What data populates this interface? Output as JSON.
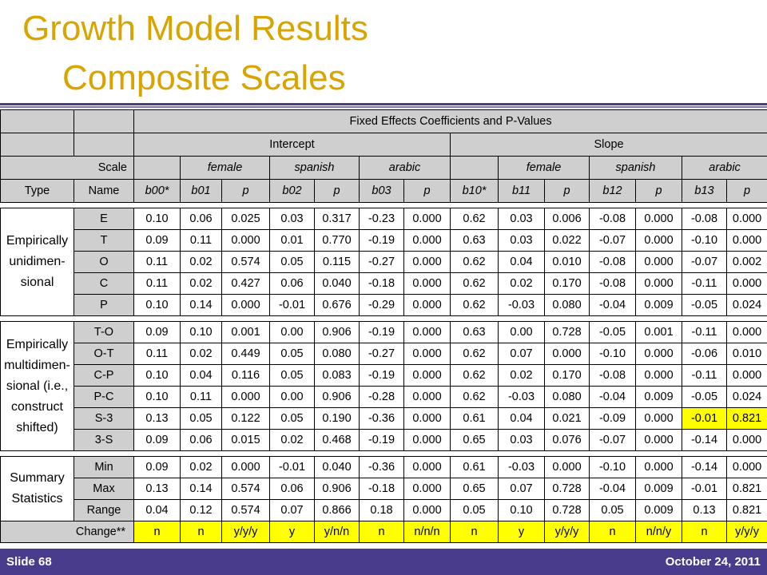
{
  "title_line1": "Growth Model Results",
  "title_line2": "Composite Scales",
  "table": {
    "header_fixed": "Fixed Effects Coefficients and P-Values",
    "header_intercept": "Intercept",
    "header_slope": "Slope",
    "header_scale": "Scale",
    "header_female": "female",
    "header_spanish": "spanish",
    "header_arabic": "arabic",
    "col_type": "Type",
    "col_name": "Name",
    "col_b00": "b00*",
    "col_b01": "b01",
    "col_b02": "b02",
    "col_b03": "b03",
    "col_b10": "b10*",
    "col_b11": "b11",
    "col_b12": "b12",
    "col_b13": "b13",
    "col_p": "p",
    "group_uni": "Empirically unidimen-sional",
    "group_multi": "Empirically multidimen-sional (i.e., construct shifted)",
    "group_summary": "Summary Statistics",
    "rows": [
      [
        "E",
        "0.10",
        "0.06",
        "0.025",
        "0.03",
        "0.317",
        "-0.23",
        "0.000",
        "0.62",
        "0.03",
        "0.006",
        "-0.08",
        "0.000",
        "-0.08",
        "0.000"
      ],
      [
        "T",
        "0.09",
        "0.11",
        "0.000",
        "0.01",
        "0.770",
        "-0.19",
        "0.000",
        "0.63",
        "0.03",
        "0.022",
        "-0.07",
        "0.000",
        "-0.10",
        "0.000"
      ],
      [
        "O",
        "0.11",
        "0.02",
        "0.574",
        "0.05",
        "0.115",
        "-0.27",
        "0.000",
        "0.62",
        "0.04",
        "0.010",
        "-0.08",
        "0.000",
        "-0.07",
        "0.002"
      ],
      [
        "C",
        "0.11",
        "0.02",
        "0.427",
        "0.06",
        "0.040",
        "-0.18",
        "0.000",
        "0.62",
        "0.02",
        "0.170",
        "-0.08",
        "0.000",
        "-0.11",
        "0.000"
      ],
      [
        "P",
        "0.10",
        "0.14",
        "0.000",
        "-0.01",
        "0.676",
        "-0.29",
        "0.000",
        "0.62",
        "-0.03",
        "0.080",
        "-0.04",
        "0.009",
        "-0.05",
        "0.024"
      ],
      [
        "T-O",
        "0.09",
        "0.10",
        "0.001",
        "0.00",
        "0.906",
        "-0.19",
        "0.000",
        "0.63",
        "0.00",
        "0.728",
        "-0.05",
        "0.001",
        "-0.11",
        "0.000"
      ],
      [
        "O-T",
        "0.11",
        "0.02",
        "0.449",
        "0.05",
        "0.080",
        "-0.27",
        "0.000",
        "0.62",
        "0.07",
        "0.000",
        "-0.10",
        "0.000",
        "-0.06",
        "0.010"
      ],
      [
        "C-P",
        "0.10",
        "0.04",
        "0.116",
        "0.05",
        "0.083",
        "-0.19",
        "0.000",
        "0.62",
        "0.02",
        "0.170",
        "-0.08",
        "0.000",
        "-0.11",
        "0.000"
      ],
      [
        "P-C",
        "0.10",
        "0.11",
        "0.000",
        "0.00",
        "0.906",
        "-0.28",
        "0.000",
        "0.62",
        "-0.03",
        "0.080",
        "-0.04",
        "0.009",
        "-0.05",
        "0.024"
      ],
      [
        "S-3",
        "0.13",
        "0.05",
        "0.122",
        "0.05",
        "0.190",
        "-0.36",
        "0.000",
        "0.61",
        "0.04",
        "0.021",
        "-0.09",
        "0.000",
        "-0.01",
        "0.821"
      ],
      [
        "3-S",
        "0.09",
        "0.06",
        "0.015",
        "0.02",
        "0.468",
        "-0.19",
        "0.000",
        "0.65",
        "0.03",
        "0.076",
        "-0.07",
        "0.000",
        "-0.14",
        "0.000"
      ],
      [
        "Min",
        "0.09",
        "0.02",
        "0.000",
        "-0.01",
        "0.040",
        "-0.36",
        "0.000",
        "0.61",
        "-0.03",
        "0.000",
        "-0.10",
        "0.000",
        "-0.14",
        "0.000"
      ],
      [
        "Max",
        "0.13",
        "0.14",
        "0.574",
        "0.06",
        "0.906",
        "-0.18",
        "0.000",
        "0.65",
        "0.07",
        "0.728",
        "-0.04",
        "0.009",
        "-0.01",
        "0.821"
      ],
      [
        "Range",
        "0.04",
        "0.12",
        "0.574",
        "0.07",
        "0.866",
        "0.18",
        "0.000",
        "0.05",
        "0.10",
        "0.728",
        "0.05",
        "0.009",
        "0.13",
        "0.821"
      ]
    ],
    "change_label": "Change**",
    "change": [
      "n",
      "n",
      "y/y/y",
      "y",
      "y/n/n",
      "n",
      "n/n/n",
      "n",
      "y",
      "y/y/y",
      "n",
      "n/n/y",
      "n",
      "y/y/y"
    ],
    "highlight_color": "#ffff00",
    "header_bg_color": "#cfcfcf"
  },
  "footer": {
    "left": "Slide 68",
    "right": "October 24, 2011",
    "bg_color": "#4a3c8c"
  }
}
